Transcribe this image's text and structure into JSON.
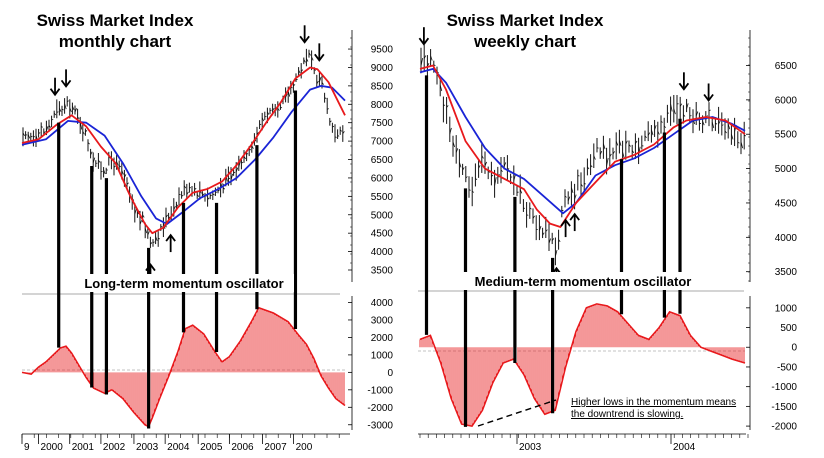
{
  "colors": {
    "price": "#111111",
    "fast_ma": "#e8191c",
    "slow_ma": "#1a24d6",
    "oscillator": "#e8191c",
    "marker": "#000000"
  },
  "chart_data": [
    {
      "type": "line",
      "title": "Swiss Market Index",
      "subtitle": "monthly chart",
      "oscillator_label": "Long-term momentum oscillator",
      "x_ticks": [
        "9",
        "2000",
        "2001",
        "2002",
        "2003",
        "2004",
        "2005",
        "2006",
        "2007",
        "200"
      ],
      "xlim": [
        1999.55,
        2008.35
      ],
      "price_ylim": [
        3500,
        9800
      ],
      "price_yticks": [
        "9500",
        "9000",
        "8500",
        "8000",
        "7500",
        "7000",
        "6500",
        "6000",
        "5500",
        "5000",
        "4500",
        "4000",
        "3500"
      ],
      "osc_ylim": [
        -3300,
        4200
      ],
      "osc_yticks": [
        "4000",
        "3000",
        "2000",
        "1000",
        "0",
        "-1000",
        "-2000",
        "-3000"
      ],
      "series": [
        {
          "name": "SMI price",
          "style": "bars",
          "x": [
            1999.55,
            1999.9,
            2000.2,
            2000.5,
            2000.85,
            2001.2,
            2001.5,
            2001.75,
            2002.0,
            2002.3,
            2002.6,
            2002.85,
            2003.05,
            2003.3,
            2003.6,
            2003.9,
            2004.1,
            2004.4,
            2004.7,
            2005.0,
            2005.3,
            2005.6,
            2005.9,
            2006.2,
            2006.5,
            2006.8,
            2007.1,
            2007.35,
            2007.55,
            2007.75,
            2008.0,
            2008.3
          ],
          "y": [
            7000,
            7200,
            7300,
            7800,
            8000,
            7400,
            6500,
            6200,
            6500,
            6100,
            5100,
            4800,
            4300,
            4500,
            5100,
            5600,
            5800,
            5600,
            5500,
            5800,
            6100,
            6600,
            7100,
            7800,
            7700,
            8300,
            8900,
            9300,
            8800,
            8500,
            7300,
            7200
          ]
        },
        {
          "name": "Fast moving average",
          "style": "line",
          "color_key": "fast_ma",
          "x": [
            1999.55,
            2000.0,
            2000.5,
            2000.9,
            2001.3,
            2001.7,
            2002.1,
            2002.5,
            2002.9,
            2003.1,
            2003.4,
            2003.8,
            2004.2,
            2004.6,
            2005.0,
            2005.4,
            2005.8,
            2006.2,
            2006.6,
            2007.0,
            2007.4,
            2007.6,
            2007.9,
            2008.35
          ],
          "y": [
            6950,
            7050,
            7450,
            7700,
            7400,
            6850,
            6400,
            5500,
            4750,
            4500,
            4650,
            5200,
            5600,
            5700,
            5900,
            6350,
            6900,
            7500,
            8050,
            8700,
            9000,
            8950,
            8600,
            7700
          ]
        },
        {
          "name": "Slow moving average",
          "style": "line",
          "color_key": "slow_ma",
          "x": [
            1999.55,
            2000.2,
            2000.8,
            2001.3,
            2001.8,
            2002.3,
            2002.8,
            2003.2,
            2003.5,
            2003.9,
            2004.4,
            2004.9,
            2005.4,
            2005.9,
            2006.4,
            2006.9,
            2007.4,
            2007.7,
            2008.0,
            2008.35
          ],
          "y": [
            6900,
            7050,
            7550,
            7500,
            7150,
            6400,
            5500,
            4900,
            4750,
            5050,
            5450,
            5700,
            6000,
            6500,
            7100,
            7800,
            8400,
            8500,
            8450,
            8100
          ]
        },
        {
          "name": "Long-term momentum oscillator",
          "style": "histogram",
          "color_key": "oscillator",
          "x": [
            1999.55,
            1999.8,
            2000.0,
            2000.2,
            2000.4,
            2000.6,
            2000.75,
            2000.9,
            2001.1,
            2001.3,
            2001.5,
            2001.8,
            2002.0,
            2002.3,
            2002.6,
            2002.9,
            2003.0,
            2003.1,
            2003.3,
            2003.55,
            2003.8,
            2004.0,
            2004.2,
            2004.5,
            2004.8,
            2005.0,
            2005.2,
            2005.5,
            2005.8,
            2006.0,
            2006.4,
            2006.8,
            2007.1,
            2007.3,
            2007.5,
            2007.7,
            2007.9,
            2008.1,
            2008.35
          ],
          "y": [
            0,
            -100,
            300,
            600,
            1000,
            1400,
            1500,
            1100,
            400,
            -300,
            -900,
            -1200,
            -1000,
            -1500,
            -2300,
            -3000,
            -3100,
            -2600,
            -1500,
            -200,
            1200,
            2500,
            2700,
            2200,
            1200,
            600,
            900,
            1800,
            2900,
            3700,
            3400,
            2900,
            2100,
            1600,
            800,
            -200,
            -900,
            -1500,
            -1900
          ]
        }
      ],
      "markers": {
        "down_arrows_x": [
          2000.45,
          2000.75,
          2007.25,
          2007.65
        ],
        "up_arrows_x": [
          2003.05,
          2003.6
        ],
        "signal_lines_x": [
          2000.55,
          2001.45,
          2001.85,
          2003.0,
          2003.95,
          2004.85,
          2005.95,
          2007.0
        ]
      }
    },
    {
      "type": "line",
      "title": "Swiss Market Index",
      "subtitle": "weekly chart",
      "oscillator_label": "Medium-term momentum oscillator",
      "x_ticks": [
        "2003",
        "2004"
      ],
      "xlim": [
        2002.0,
        2004.5
      ],
      "price_ylim": [
        3350,
        6900
      ],
      "price_yticks": [
        "6500",
        "6000",
        "5500",
        "5000",
        "4500",
        "4000",
        "3500"
      ],
      "osc_ylim": [
        -2150,
        1300
      ],
      "osc_yticks": [
        "1000",
        "500",
        "0",
        "-500",
        "-1000",
        "-1500",
        "-2000"
      ],
      "series": [
        {
          "name": "SMI price",
          "style": "bars",
          "x": [
            2002.0,
            2002.08,
            2002.16,
            2002.24,
            2002.32,
            2002.4,
            2002.48,
            2002.56,
            2002.64,
            2002.72,
            2002.8,
            2002.88,
            2002.96,
            2003.04,
            2003.12,
            2003.2,
            2003.28,
            2003.36,
            2003.44,
            2003.52,
            2003.6,
            2003.68,
            2003.76,
            2003.84,
            2003.92,
            2004.0,
            2004.08,
            2004.16,
            2004.24,
            2004.32,
            2004.4,
            2004.48
          ],
          "y": [
            6500,
            6550,
            6100,
            5500,
            5000,
            4700,
            5100,
            4800,
            5100,
            4800,
            4500,
            4200,
            4100,
            3800,
            4600,
            4700,
            4900,
            5300,
            5200,
            5350,
            5250,
            5300,
            5500,
            5600,
            5800,
            5900,
            5800,
            5700,
            5700,
            5600,
            5500,
            5450
          ]
        },
        {
          "name": "Fast moving average",
          "style": "line",
          "color_key": "fast_ma",
          "x": [
            2002.0,
            2002.1,
            2002.2,
            2002.35,
            2002.5,
            2002.65,
            2002.8,
            2002.9,
            2003.0,
            2003.08,
            2003.2,
            2003.35,
            2003.5,
            2003.65,
            2003.8,
            2003.95,
            2004.05,
            2004.2,
            2004.35,
            2004.5
          ],
          "y": [
            6450,
            6500,
            6150,
            5400,
            5000,
            4850,
            4700,
            4400,
            4200,
            4150,
            4500,
            4800,
            5100,
            5200,
            5350,
            5600,
            5700,
            5750,
            5700,
            5500
          ]
        },
        {
          "name": "Slow moving average",
          "style": "line",
          "color_key": "slow_ma",
          "x": [
            2002.0,
            2002.1,
            2002.2,
            2002.35,
            2002.5,
            2002.65,
            2002.8,
            2002.95,
            2003.1,
            2003.2,
            2003.35,
            2003.5,
            2003.65,
            2003.8,
            2003.95,
            2004.1,
            2004.25,
            2004.4,
            2004.5
          ],
          "y": [
            6400,
            6450,
            6250,
            5750,
            5300,
            5000,
            4850,
            4600,
            4350,
            4500,
            4900,
            5050,
            5150,
            5300,
            5500,
            5700,
            5750,
            5650,
            5550
          ]
        },
        {
          "name": "Medium-term momentum oscillator",
          "style": "histogram",
          "color_key": "oscillator",
          "x": [
            2002.0,
            2002.08,
            2002.16,
            2002.24,
            2002.32,
            2002.4,
            2002.48,
            2002.56,
            2002.64,
            2002.72,
            2002.8,
            2002.88,
            2002.96,
            2003.04,
            2003.12,
            2003.2,
            2003.28,
            2003.36,
            2003.44,
            2003.52,
            2003.6,
            2003.68,
            2003.76,
            2003.84,
            2003.92,
            2004.0,
            2004.08,
            2004.16,
            2004.24,
            2004.32,
            2004.4,
            2004.5
          ],
          "y": [
            200,
            300,
            -400,
            -1300,
            -1950,
            -2000,
            -1600,
            -900,
            -400,
            -300,
            -700,
            -1300,
            -1700,
            -1600,
            -500,
            400,
            1000,
            1100,
            1050,
            900,
            600,
            300,
            200,
            500,
            900,
            800,
            300,
            0,
            -100,
            -200,
            -300,
            -400
          ]
        }
      ],
      "markers": {
        "down_arrows_x": [
          2002.03,
          2004.03,
          2004.22
        ],
        "up_arrows_x": [
          2003.05,
          2003.12,
          2003.19
        ],
        "signal_lines_x": [
          2002.05,
          2002.35,
          2002.73,
          2003.02,
          2003.55,
          2003.88,
          2004.0
        ]
      },
      "annotation": "Higher lows in the momentum means the downtrend is slowing."
    }
  ]
}
